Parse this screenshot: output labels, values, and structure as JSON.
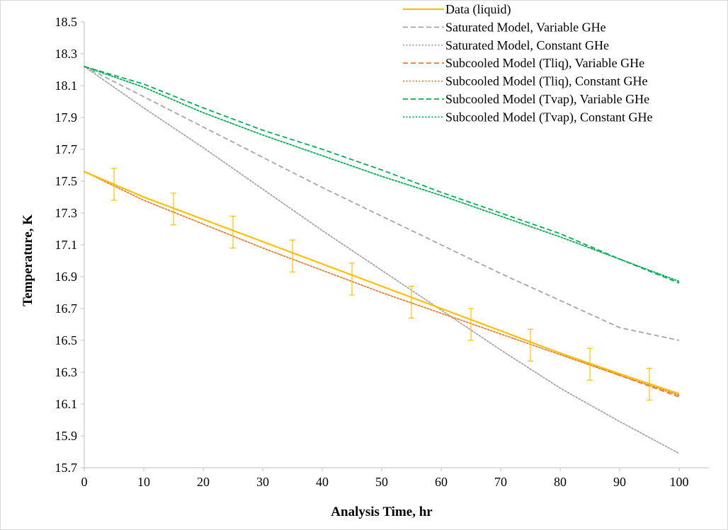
{
  "chart_data": {
    "type": "line",
    "title": "",
    "xlabel": "Analysis Time, hr",
    "ylabel": "Temperature, K",
    "xlim": [
      0,
      105
    ],
    "ylim": [
      15.7,
      18.5
    ],
    "xticks": [
      0,
      10,
      20,
      30,
      40,
      50,
      60,
      70,
      80,
      90,
      100
    ],
    "yticks": [
      15.7,
      15.9,
      16.1,
      16.3,
      16.5,
      16.7,
      16.9,
      17.1,
      17.3,
      17.5,
      17.7,
      17.9,
      18.1,
      18.3,
      18.5
    ],
    "grid": false,
    "legend_position": "top-right",
    "series": [
      {
        "name": "Data (liquid)",
        "color": "#FFC000",
        "style": "solid",
        "x": [
          0,
          10,
          20,
          30,
          40,
          50,
          60,
          70,
          80,
          90,
          100
        ],
        "y": [
          17.56,
          17.4,
          17.26,
          17.12,
          16.98,
          16.84,
          16.7,
          16.56,
          16.42,
          16.29,
          16.165
        ],
        "error_bars": {
          "x": [
            5,
            15,
            25,
            35,
            45,
            55,
            65,
            75,
            85,
            95
          ],
          "y": [
            17.48,
            17.325,
            17.18,
            17.03,
            16.885,
            16.74,
            16.6,
            16.47,
            16.35,
            16.225
          ],
          "err": 0.1
        }
      },
      {
        "name": "Saturated Model, Variable GHe",
        "color": "#A6A6A6",
        "style": "dashed",
        "x": [
          0,
          10,
          20,
          30,
          40,
          50,
          60,
          70,
          80,
          90,
          100
        ],
        "y": [
          18.22,
          18.03,
          17.84,
          17.65,
          17.46,
          17.28,
          17.1,
          16.92,
          16.75,
          16.58,
          16.5
        ]
      },
      {
        "name": "Saturated Model, Constant GHe",
        "color": "#A6A6A6",
        "style": "dotted",
        "x": [
          0,
          10,
          20,
          30,
          40,
          50,
          60,
          70,
          80,
          90,
          100
        ],
        "y": [
          18.22,
          17.96,
          17.71,
          17.45,
          17.19,
          16.94,
          16.69,
          16.44,
          16.2,
          15.99,
          15.79
        ]
      },
      {
        "name": "Subcooled Model (Tliq), Variable GHe",
        "color": "#ED7D31",
        "style": "dashed",
        "x": [
          0,
          10,
          20,
          30,
          40,
          50,
          60,
          70,
          80,
          90,
          100
        ],
        "y": [
          17.56,
          17.4,
          17.26,
          17.12,
          16.98,
          16.84,
          16.7,
          16.56,
          16.42,
          16.28,
          16.145
        ]
      },
      {
        "name": "Subcooled Model (Tliq), Constant GHe",
        "color": "#ED7D31",
        "style": "dotted",
        "x": [
          0,
          10,
          20,
          30,
          40,
          50,
          60,
          70,
          80,
          90,
          100
        ],
        "y": [
          17.56,
          17.38,
          17.23,
          17.08,
          16.94,
          16.8,
          16.67,
          16.54,
          16.41,
          16.28,
          16.155
        ]
      },
      {
        "name": "Subcooled Model (Tvap), Variable GHe",
        "color": "#00B050",
        "style": "dashed",
        "x": [
          0,
          10,
          20,
          30,
          40,
          50,
          60,
          70,
          80,
          90,
          100
        ],
        "y": [
          18.22,
          18.11,
          17.96,
          17.82,
          17.7,
          17.57,
          17.43,
          17.3,
          17.17,
          17.01,
          16.86
        ]
      },
      {
        "name": "Subcooled Model (Tvap), Constant GHe",
        "color": "#00B050",
        "style": "dotted",
        "x": [
          0,
          10,
          20,
          30,
          40,
          50,
          60,
          70,
          80,
          90,
          100
        ],
        "y": [
          18.22,
          18.09,
          17.93,
          17.79,
          17.66,
          17.53,
          17.41,
          17.28,
          17.15,
          17.01,
          16.87
        ]
      }
    ]
  }
}
